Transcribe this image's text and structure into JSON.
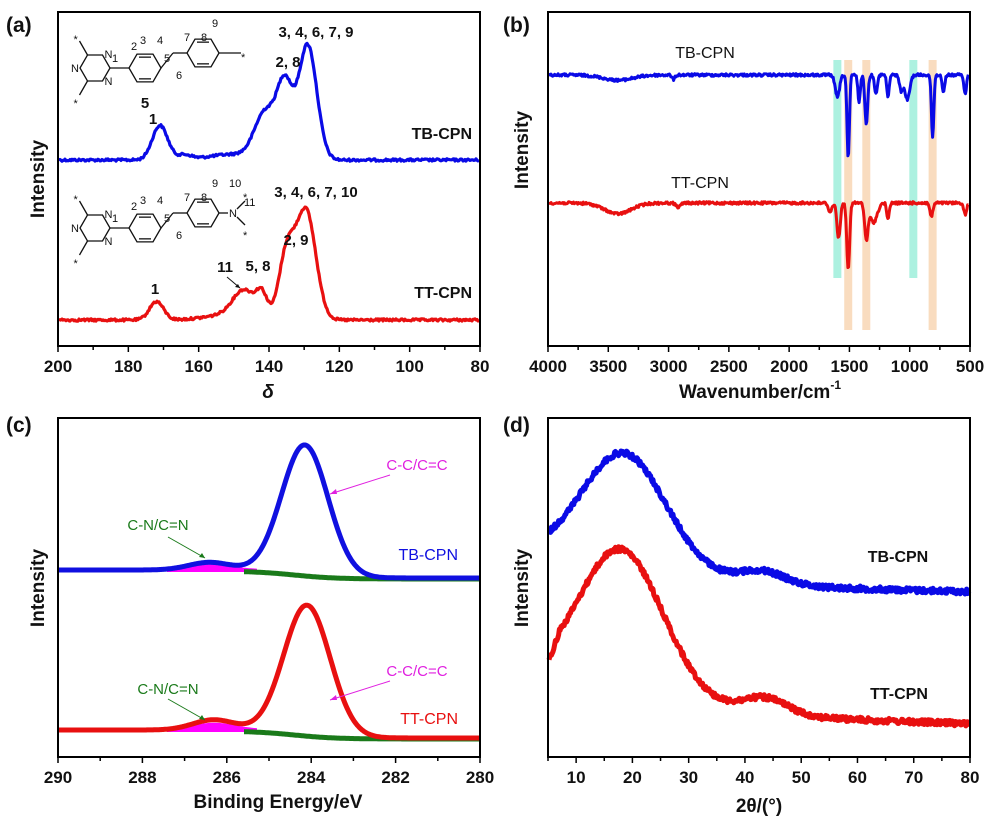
{
  "figure": {
    "panels": [
      "(a)",
      "(b)",
      "(c)",
      "(d)"
    ]
  },
  "chart_data": [
    {
      "panel": "(a)",
      "type": "line",
      "title": "",
      "xlabel": "δ",
      "ylabel": "Intensity",
      "xlim": [
        200,
        80
      ],
      "x_reversed": true,
      "xticks": [
        "200",
        "180",
        "160",
        "140",
        "120",
        "100",
        "80"
      ],
      "yticks_visible": false,
      "grid": false,
      "series": [
        {
          "name": "TB-CPN",
          "color": "#0a0ae6",
          "offset": 1.0,
          "peaks": [
            {
              "center": 171,
              "height": 0.3,
              "width": 2.2
            },
            {
              "center": 164,
              "height": 0.04,
              "width": 2.0
            },
            {
              "center": 141,
              "height": 0.4,
              "width": 3.0
            },
            {
              "center": 135.5,
              "height": 0.62,
              "width": 2.2
            },
            {
              "center": 129,
              "height": 1.0,
              "width": 2.6
            }
          ],
          "baseline": 0.0,
          "peak_labels": [
            {
              "text": "1",
              "x": 171
            },
            {
              "text": "5",
              "x": 142
            },
            {
              "text": "2, 8",
              "x": 135
            },
            {
              "text": "3, 4, 6, 7, 9",
              "x": 129
            }
          ]
        },
        {
          "name": "TT-CPN",
          "color": "#e81010",
          "offset": 0.0,
          "peaks": [
            {
              "center": 172,
              "height": 0.16,
              "width": 2.0
            },
            {
              "center": 147,
              "height": 0.22,
              "width": 3.2
            },
            {
              "center": 142,
              "height": 0.18,
              "width": 1.5
            },
            {
              "center": 135,
              "height": 0.55,
              "width": 2.2
            },
            {
              "center": 129.5,
              "height": 0.95,
              "width": 2.8
            }
          ],
          "baseline": 0.0,
          "peak_labels": [
            {
              "text": "1",
              "x": 172
            },
            {
              "text": "11",
              "x": 147
            },
            {
              "text": "5, 8",
              "x": 142
            },
            {
              "text": "2, 9",
              "x": 135
            },
            {
              "text": "3, 4, 6, 7, 10",
              "x": 129
            }
          ]
        }
      ],
      "annotations": {
        "structure_top_numbers": [
          "1",
          "2",
          "3",
          "4",
          "5",
          "6",
          "7",
          "8",
          "9"
        ],
        "structure_bottom_numbers": [
          "1",
          "2",
          "3",
          "4",
          "5",
          "6",
          "7",
          "8",
          "9",
          "10",
          "11"
        ],
        "atom_N": "N",
        "star": "*"
      }
    },
    {
      "panel": "(b)",
      "type": "line",
      "title": "",
      "xlabel": "Wavenumber/cm",
      "xlabel_superscript": "-1",
      "ylabel": "Intensity",
      "xlim": [
        4000,
        500
      ],
      "x_reversed": true,
      "xticks": [
        "4000",
        "3500",
        "3000",
        "2500",
        "2000",
        "1500",
        "1000",
        "500"
      ],
      "yticks_visible": false,
      "grid": false,
      "highlight_bands": [
        {
          "center": 1600,
          "color": "#9eeedb"
        },
        {
          "center": 1510,
          "color": "#f8d6b4"
        },
        {
          "center": 1360,
          "color": "#f8d6b4"
        },
        {
          "center": 970,
          "color": "#9eeedb"
        },
        {
          "center": 810,
          "color": "#f8d6b4"
        }
      ],
      "series": [
        {
          "name": "TB-CPN",
          "color": "#0a0ae6",
          "dips": [
            {
              "center": 3420,
              "depth": 0.06,
              "width": 120
            },
            {
              "center": 2960,
              "depth": 0.05,
              "width": 12
            },
            {
              "center": 1600,
              "depth": 0.25,
              "width": 18
            },
            {
              "center": 1510,
              "depth": 0.95,
              "width": 10
            },
            {
              "center": 1420,
              "depth": 0.3,
              "width": 10
            },
            {
              "center": 1360,
              "depth": 0.55,
              "width": 12
            },
            {
              "center": 1280,
              "depth": 0.2,
              "width": 12
            },
            {
              "center": 1180,
              "depth": 0.25,
              "width": 10
            },
            {
              "center": 1070,
              "depth": 0.18,
              "width": 14
            },
            {
              "center": 1020,
              "depth": 0.28,
              "width": 20
            },
            {
              "center": 810,
              "depth": 0.7,
              "width": 10
            },
            {
              "center": 720,
              "depth": 0.2,
              "width": 10
            },
            {
              "center": 540,
              "depth": 0.22,
              "width": 10
            }
          ]
        },
        {
          "name": "TT-CPN",
          "color": "#e81010",
          "dips": [
            {
              "center": 3420,
              "depth": 0.14,
              "width": 110
            },
            {
              "center": 2920,
              "depth": 0.05,
              "width": 20
            },
            {
              "center": 1660,
              "depth": 0.12,
              "width": 14
            },
            {
              "center": 1590,
              "depth": 0.45,
              "width": 14
            },
            {
              "center": 1510,
              "depth": 0.85,
              "width": 12
            },
            {
              "center": 1360,
              "depth": 0.45,
              "width": 14
            },
            {
              "center": 1300,
              "depth": 0.25,
              "width": 30
            },
            {
              "center": 1180,
              "depth": 0.22,
              "width": 10
            },
            {
              "center": 820,
              "depth": 0.18,
              "width": 12
            },
            {
              "center": 540,
              "depth": 0.15,
              "width": 12
            }
          ]
        }
      ]
    },
    {
      "panel": "(c)",
      "type": "line",
      "title": "",
      "xlabel": "Binding Energy/eV",
      "ylabel": "Intensity",
      "xlim": [
        290,
        280
      ],
      "x_reversed": true,
      "xticks": [
        "290",
        "288",
        "286",
        "284",
        "282",
        "280"
      ],
      "yticks_visible": false,
      "grid": false,
      "series": [
        {
          "name": "TB-CPN",
          "color": "#1010e0",
          "main_peak": {
            "center": 284.15,
            "height": 1.0,
            "sigma": 0.55
          },
          "minor_peak": {
            "center": 286.4,
            "height": 0.06,
            "sigma": 0.5
          },
          "component_labels": [
            {
              "text": "C-C/C=C",
              "color": "#e020e0"
            },
            {
              "text": "C-N/C=N",
              "color": "#1a7a1a"
            }
          ]
        },
        {
          "name": "TT-CPN",
          "color": "#e81010",
          "main_peak": {
            "center": 284.1,
            "height": 1.0,
            "sigma": 0.55
          },
          "minor_peak": {
            "center": 286.3,
            "height": 0.08,
            "sigma": 0.5
          },
          "component_labels": [
            {
              "text": "C-C/C=C",
              "color": "#e020e0"
            },
            {
              "text": "C-N/C=N",
              "color": "#1a7a1a"
            }
          ]
        }
      ],
      "component_colors": {
        "c_c": "#ff00ff",
        "c_n": "#1a7a1a"
      }
    },
    {
      "panel": "(d)",
      "type": "line",
      "title": "",
      "xlabel": "2θ/(°)",
      "ylabel": "Intensity",
      "xlim": [
        5,
        80
      ],
      "xticks": [
        "10",
        "20",
        "30",
        "40",
        "50",
        "60",
        "70",
        "80"
      ],
      "yticks_visible": false,
      "grid": false,
      "series": [
        {
          "name": "TB-CPN",
          "color": "#0a0ae6",
          "broad_peak_center": 18.5,
          "secondary_peak_center": 43
        },
        {
          "name": "TT-CPN",
          "color": "#e81010",
          "broad_peak_center": 18.0,
          "secondary_peak_center": 43.5
        }
      ]
    }
  ]
}
